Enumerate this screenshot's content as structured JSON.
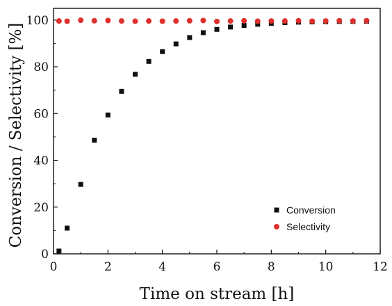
{
  "chart_data": {
    "type": "scatter",
    "title": "",
    "xlabel": "Time on stream [h]",
    "ylabel": "Conversion / Selectivity [%]",
    "xlim": [
      0,
      12
    ],
    "ylim": [
      0,
      105
    ],
    "xticks": [
      0,
      2,
      4,
      6,
      8,
      10,
      12
    ],
    "yticks": [
      0,
      20,
      40,
      60,
      80,
      100
    ],
    "grid": false,
    "legend_position": "bottom-right",
    "series": [
      {
        "name": "Conversion",
        "marker": "square",
        "color": "#111111",
        "x": [
          0.2,
          0.5,
          1.0,
          1.5,
          2.0,
          2.5,
          3.0,
          3.5,
          4.0,
          4.5,
          5.0,
          5.5,
          6.0,
          6.5,
          7.0,
          7.5,
          8.0,
          8.5,
          9.0,
          9.5,
          10.0,
          10.5,
          11.0,
          11.5
        ],
        "y": [
          1.2,
          11.0,
          29.7,
          48.6,
          59.4,
          69.5,
          76.8,
          82.3,
          86.5,
          89.8,
          92.5,
          94.6,
          96.0,
          97.0,
          97.7,
          98.2,
          98.6,
          98.9,
          99.1,
          99.2,
          99.3,
          99.4,
          99.4,
          99.5
        ]
      },
      {
        "name": "Selectivity",
        "marker": "circle",
        "color": "#e0302b",
        "x": [
          0.2,
          0.5,
          1.0,
          1.5,
          2.0,
          2.5,
          3.0,
          3.5,
          4.0,
          4.5,
          5.0,
          5.5,
          6.0,
          6.5,
          7.0,
          7.5,
          8.0,
          8.5,
          9.0,
          9.5,
          10.0,
          10.5,
          11.0,
          11.5
        ],
        "y": [
          99.6,
          99.5,
          99.9,
          99.7,
          99.8,
          99.6,
          99.5,
          99.6,
          99.5,
          99.6,
          99.7,
          99.8,
          99.4,
          99.6,
          99.7,
          99.5,
          99.6,
          99.6,
          99.7,
          99.5,
          99.6,
          99.7,
          99.6,
          99.7
        ]
      }
    ]
  }
}
